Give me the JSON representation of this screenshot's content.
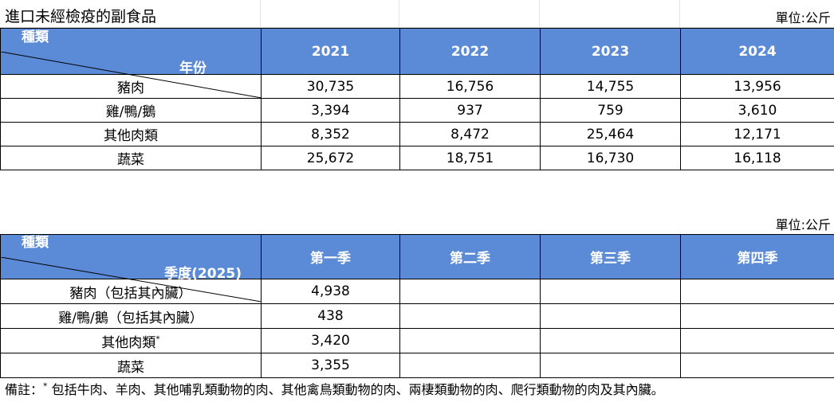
{
  "title": "進口未經檢疫的副食品",
  "unit_label": "單位:公斤",
  "table1": {
    "corner_right": "年份",
    "corner_left": "種類",
    "columns": [
      "2021",
      "2022",
      "2023",
      "2024"
    ],
    "rows": [
      {
        "label": "豬肉",
        "values": [
          "30,735",
          "16,756",
          "14,755",
          "13,956"
        ]
      },
      {
        "label": "雞/鴨/鵝",
        "values": [
          "3,394",
          "937",
          "759",
          "3,610"
        ]
      },
      {
        "label": "其他肉類",
        "values": [
          "8,352",
          "8,472",
          "25,464",
          "12,171"
        ]
      },
      {
        "label": "蔬菜",
        "values": [
          "25,672",
          "18,751",
          "16,730",
          "16,118"
        ]
      }
    ]
  },
  "table2": {
    "corner_right": "季度(2025)",
    "corner_left": "種類",
    "columns": [
      "第一季",
      "第二季",
      "第三季",
      "第四季"
    ],
    "rows": [
      {
        "label": "豬肉（包括其內臟）",
        "values": [
          "4,938",
          "",
          "",
          ""
        ]
      },
      {
        "label": "雞/鴨/鵝（包括其內臟）",
        "values": [
          "438",
          "",
          "",
          ""
        ]
      },
      {
        "label": "其他肉類",
        "mark": "*",
        "values": [
          "3,420",
          "",
          "",
          ""
        ]
      },
      {
        "label": "蔬菜",
        "values": [
          "3,355",
          "",
          "",
          ""
        ]
      }
    ]
  },
  "note": {
    "prefix": "備註：",
    "mark": "*",
    "text": "包括牛肉、羊肉、其他哺乳類動物的肉、其他禽鳥類動物的肉、兩棲類動物的肉、爬行類動物的肉及其內臟。"
  }
}
